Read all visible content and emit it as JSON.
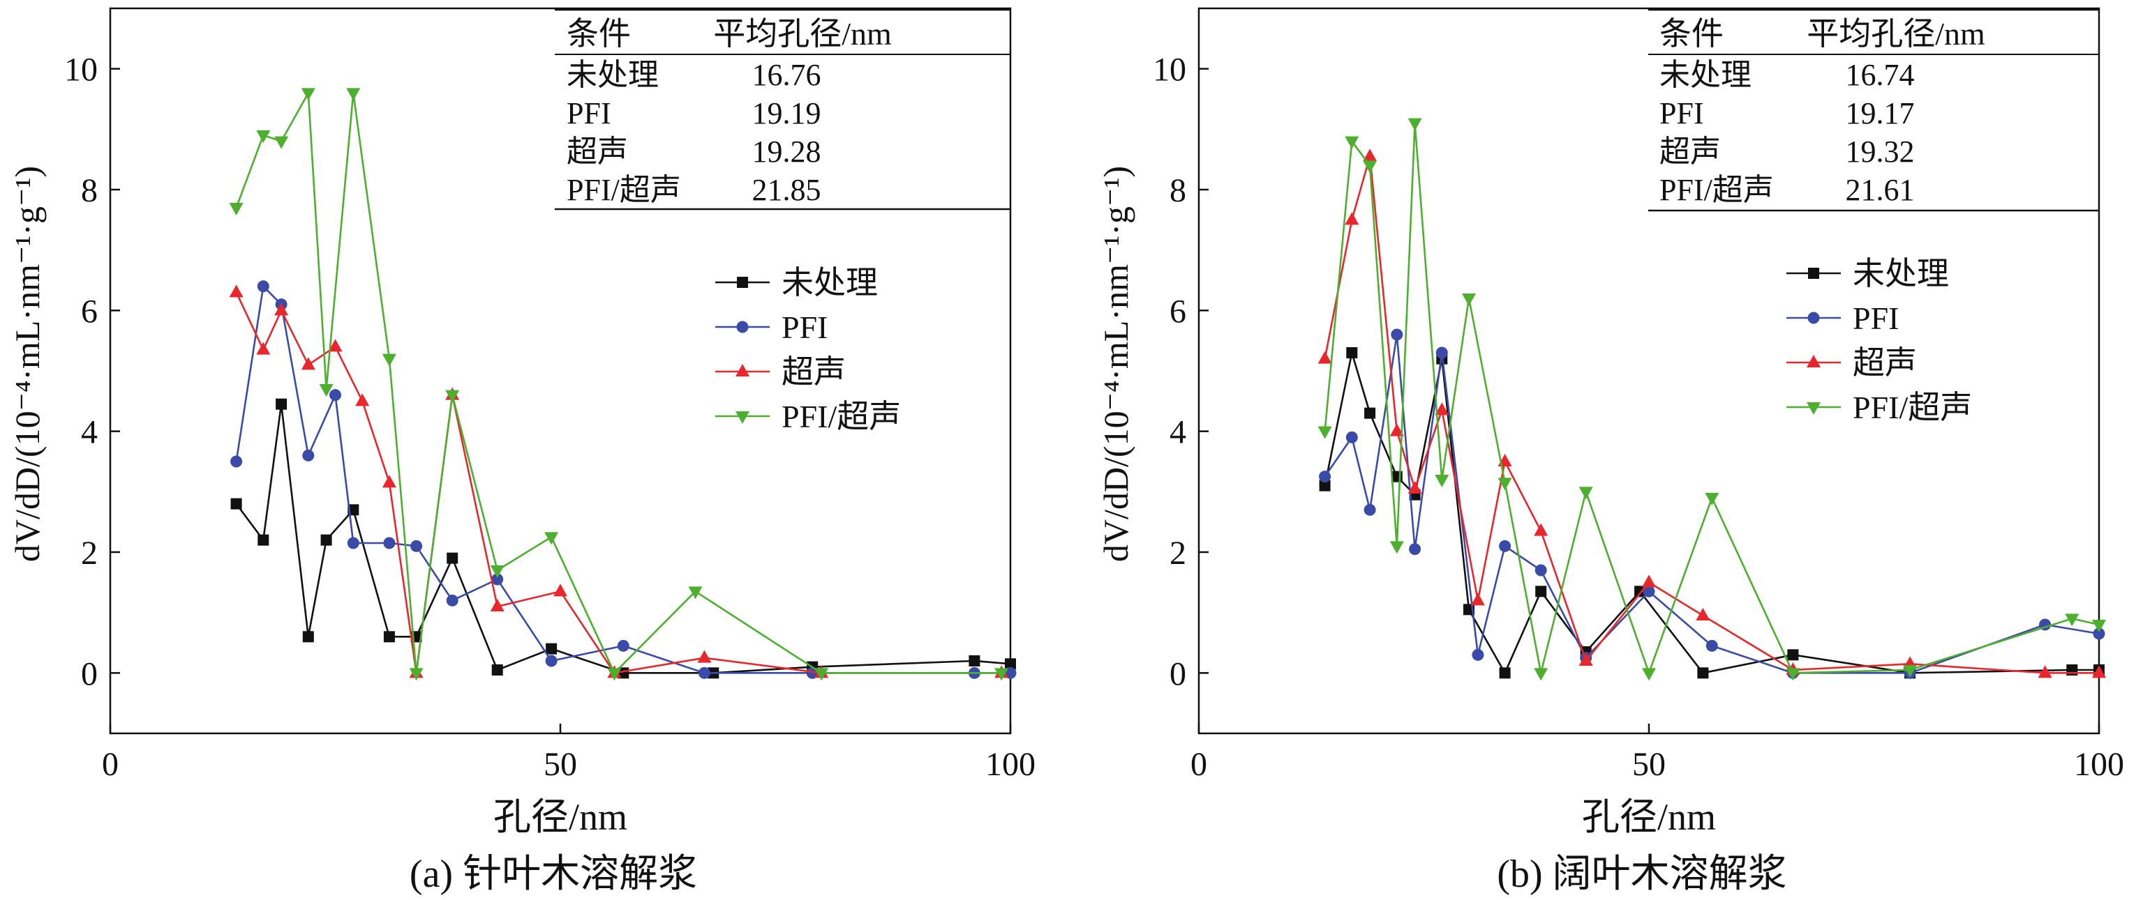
{
  "colors": {
    "untreated": "#111111",
    "pfi": "#3a4aa8",
    "ultrasound": "#e8262b",
    "pfi_ultrasound": "#4caf2e"
  },
  "chart_data": [
    {
      "type": "line",
      "caption": "(a) 针叶木溶解浆",
      "xlabel": "孔径/nm",
      "ylabel": "dV/dD/(10⁻⁴·mL·nm⁻¹·g⁻¹)",
      "xlim": [
        0,
        100
      ],
      "ylim": [
        -1,
        11
      ],
      "xticks": [
        0,
        50,
        100
      ],
      "yticks": [
        0,
        2,
        4,
        6,
        8,
        10
      ],
      "grid": false,
      "legend_position": "right-middle",
      "table": {
        "headers": [
          "条件",
          "平均孔径/nm"
        ],
        "rows": [
          [
            "未处理",
            "16.76"
          ],
          [
            "PFI",
            "19.19"
          ],
          [
            "超声",
            "19.28"
          ],
          [
            "PFI/超声",
            "21.85"
          ]
        ]
      },
      "series": [
        {
          "name": "未处理",
          "marker": "square",
          "color": "#111111",
          "x": [
            14,
            17,
            19,
            22,
            24,
            27,
            31,
            34,
            38,
            43,
            49,
            57,
            67,
            78,
            96,
            100
          ],
          "y": [
            2.8,
            2.2,
            4.45,
            0.6,
            2.2,
            2.7,
            0.6,
            0.6,
            1.9,
            0.05,
            0.4,
            0.0,
            0.0,
            0.1,
            0.2,
            0.15
          ]
        },
        {
          "name": "PFI",
          "marker": "circle",
          "color": "#3a4aa8",
          "x": [
            14,
            17,
            19,
            22,
            25,
            27,
            31,
            34,
            38,
            43,
            49,
            57,
            66,
            78,
            96,
            100
          ],
          "y": [
            3.5,
            6.4,
            6.1,
            3.6,
            4.6,
            2.15,
            2.15,
            2.1,
            1.2,
            1.55,
            0.2,
            0.45,
            0.0,
            0.0,
            0.0,
            0.0
          ]
        },
        {
          "name": "超声",
          "marker": "triangle-up",
          "color": "#e8262b",
          "x": [
            14,
            17,
            19,
            22,
            25,
            28,
            31,
            34,
            38,
            43,
            50,
            56,
            66,
            79,
            99
          ],
          "y": [
            6.3,
            5.35,
            6.0,
            5.1,
            5.4,
            4.5,
            3.15,
            0.0,
            4.6,
            1.1,
            1.35,
            0.0,
            0.25,
            0.0,
            0.0
          ]
        },
        {
          "name": "PFI/超声",
          "marker": "triangle-down",
          "color": "#4caf2e",
          "x": [
            14,
            17,
            19,
            22,
            24,
            27,
            31,
            34,
            38,
            43,
            49,
            56,
            65,
            79,
            99
          ],
          "y": [
            7.7,
            8.9,
            8.8,
            9.6,
            4.7,
            9.6,
            5.2,
            0.0,
            4.6,
            1.7,
            2.25,
            0.0,
            1.35,
            0.0,
            0.0
          ]
        }
      ]
    },
    {
      "type": "line",
      "caption": "(b) 阔叶木溶解浆",
      "xlabel": "孔径/nm",
      "ylabel": "dV/dD/(10⁻⁴·mL·nm⁻¹·g⁻¹)",
      "xlim": [
        0,
        100
      ],
      "ylim": [
        -1,
        11
      ],
      "xticks": [
        0,
        50,
        100
      ],
      "yticks": [
        0,
        2,
        4,
        6,
        8,
        10
      ],
      "grid": false,
      "legend_position": "right-middle",
      "table": {
        "headers": [
          "条件",
          "平均孔径/nm"
        ],
        "rows": [
          [
            "未处理",
            "16.74"
          ],
          [
            "PFI",
            "19.17"
          ],
          [
            "超声",
            "19.32"
          ],
          [
            "PFI/超声",
            "21.61"
          ]
        ]
      },
      "series": [
        {
          "name": "未处理",
          "marker": "square",
          "color": "#111111",
          "x": [
            14,
            17,
            19,
            22,
            24,
            27,
            30,
            34,
            38,
            43,
            49,
            56,
            66,
            79,
            97,
            100
          ],
          "y": [
            3.1,
            5.3,
            4.3,
            3.25,
            2.95,
            5.2,
            1.05,
            0.0,
            1.35,
            0.35,
            1.35,
            0.0,
            0.3,
            0.0,
            0.05,
            0.05
          ]
        },
        {
          "name": "PFI",
          "marker": "circle",
          "color": "#3a4aa8",
          "x": [
            14,
            17,
            19,
            22,
            24,
            27,
            31,
            34,
            38,
            43,
            50,
            57,
            66,
            79,
            94,
            100
          ],
          "y": [
            3.25,
            3.9,
            2.7,
            5.6,
            2.05,
            5.3,
            0.3,
            2.1,
            1.7,
            0.25,
            1.35,
            0.45,
            0.0,
            0.0,
            0.8,
            0.65
          ]
        },
        {
          "name": "超声",
          "marker": "triangle-up",
          "color": "#e8262b",
          "x": [
            14,
            17,
            19,
            22,
            24,
            27,
            31,
            34,
            38,
            43,
            50,
            56,
            66,
            79,
            94,
            100
          ],
          "y": [
            5.2,
            7.5,
            8.55,
            4.0,
            3.05,
            4.35,
            1.2,
            3.5,
            2.35,
            0.2,
            1.5,
            0.95,
            0.05,
            0.15,
            0.0,
            0.0
          ]
        },
        {
          "name": "PFI/超声",
          "marker": "triangle-down",
          "color": "#4caf2e",
          "x": [
            14,
            17,
            19,
            22,
            24,
            27,
            30,
            34,
            38,
            43,
            50,
            57,
            66,
            79,
            97,
            100
          ],
          "y": [
            4.0,
            8.8,
            8.4,
            2.1,
            9.1,
            3.2,
            6.2,
            3.15,
            0.0,
            3.0,
            0.0,
            2.9,
            0.0,
            0.05,
            0.9,
            0.8
          ]
        }
      ]
    }
  ]
}
